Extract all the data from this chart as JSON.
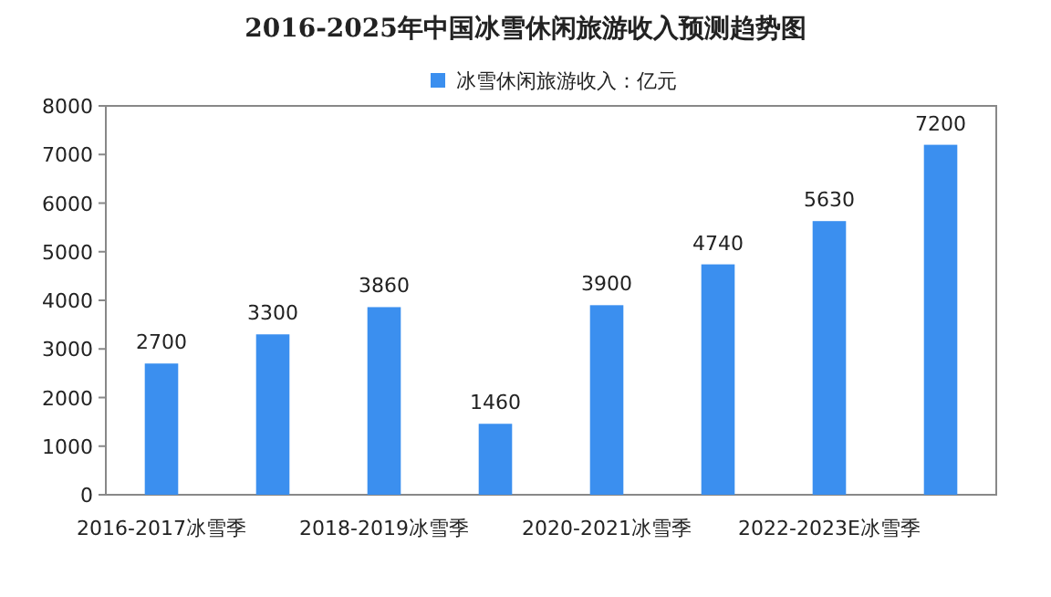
{
  "chart_data": {
    "type": "bar",
    "title": "2016-2025年中国冰雪休闲旅游收入预测趋势图",
    "categories": [
      "2016-2017冰雪季",
      null,
      "2018-2019冰雪季",
      null,
      "2020-2021冰雪季",
      null,
      "2022-2023E冰雪季",
      null
    ],
    "series": [
      {
        "name": "冰雪休闲旅游收入：亿元",
        "color": "#3b8fef",
        "values": [
          2700,
          3300,
          3860,
          1460,
          3900,
          4740,
          5630,
          7200
        ]
      }
    ],
    "ylim": [
      0,
      8000
    ],
    "yticks": [
      0,
      1000,
      2000,
      3000,
      4000,
      5000,
      6000,
      7000,
      8000
    ],
    "data_labels": true,
    "legend": "top",
    "grid": false
  }
}
